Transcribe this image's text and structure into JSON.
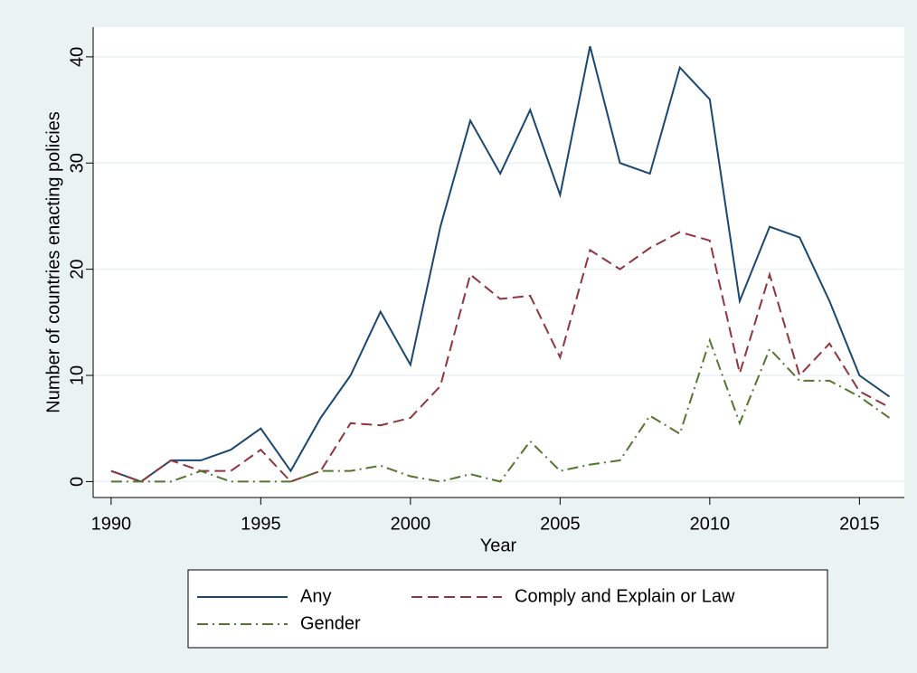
{
  "chart_data": {
    "type": "line",
    "xlabel": "Year",
    "ylabel": "Number of countries enacting policies",
    "x": [
      1990,
      1991,
      1992,
      1993,
      1994,
      1995,
      1996,
      1997,
      1998,
      1999,
      2000,
      2001,
      2002,
      2003,
      2004,
      2005,
      2006,
      2007,
      2008,
      2009,
      2010,
      2011,
      2012,
      2013,
      2014,
      2015,
      2016
    ],
    "series": [
      {
        "name": "Any",
        "color": "#1a476f",
        "dash": "solid",
        "values": [
          1,
          0,
          2,
          2,
          3,
          5,
          1,
          6,
          10,
          16,
          11,
          24,
          34,
          29,
          35,
          27,
          41,
          30,
          29,
          39,
          36,
          17,
          24,
          23,
          17,
          10,
          8
        ]
      },
      {
        "name": "Comply and Explain or Law",
        "color": "#90353b",
        "dash": "dash",
        "values": [
          1,
          0,
          2,
          1,
          1,
          3,
          0,
          1,
          5.5,
          5.3,
          6,
          9,
          19.5,
          17.2,
          17.5,
          11.7,
          21.8,
          20,
          22,
          23.5,
          22.7,
          10.2,
          19.5,
          10,
          13,
          8.5,
          7
        ]
      },
      {
        "name": "Gender",
        "color": "#55752f",
        "dash": "dashdot",
        "values": [
          0,
          0,
          0,
          1,
          0,
          0,
          0,
          1,
          1,
          1.5,
          0.5,
          0,
          0.7,
          0,
          3.8,
          1,
          1.6,
          2,
          6.2,
          4.5,
          13.3,
          5.5,
          12.5,
          9.5,
          9.5,
          8,
          6
        ]
      }
    ],
    "xlim": [
      1989.4,
      2016.5
    ],
    "xticks": [
      1990,
      1995,
      2000,
      2005,
      2010,
      2015
    ],
    "ylim": [
      -1.5,
      42.8
    ],
    "yticks": [
      0,
      10,
      20,
      30,
      40
    ],
    "grid": true,
    "legend": "bottom"
  }
}
